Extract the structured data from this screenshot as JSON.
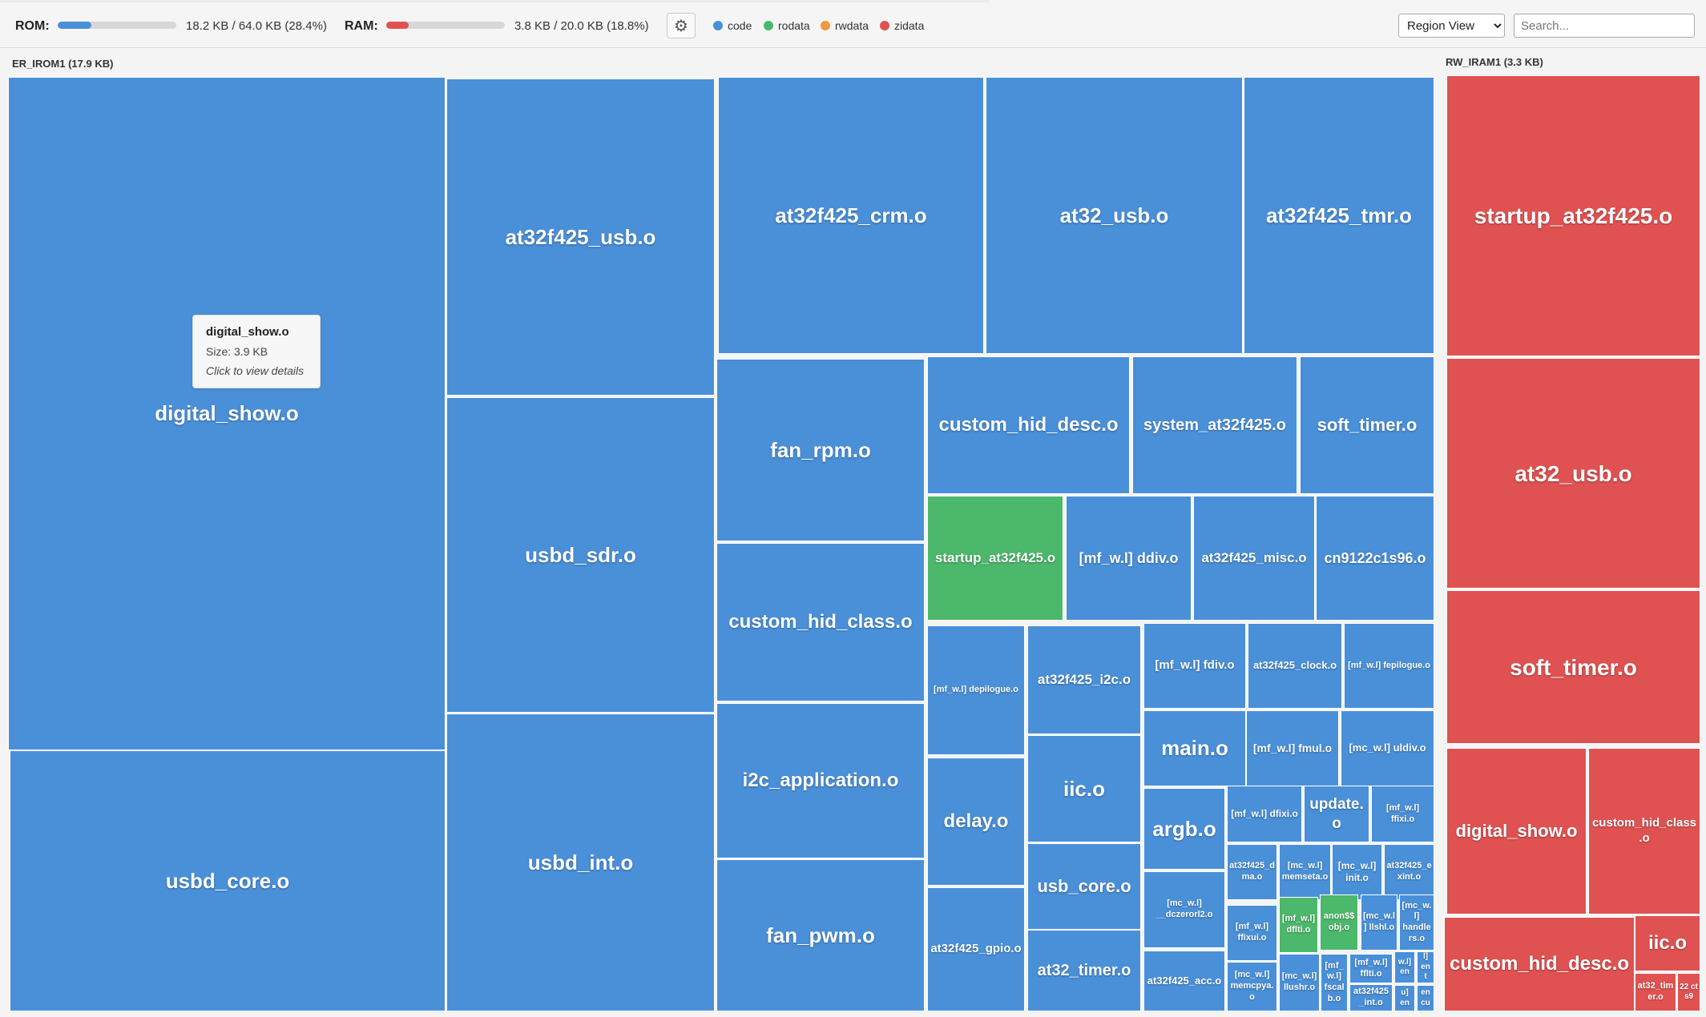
{
  "toolbar": {
    "rom_label": "ROM:",
    "rom_text": "18.2 KB / 64.0 KB (28.4%)",
    "rom_fraction": 0.284,
    "ram_label": "RAM:",
    "ram_text": "3.8 KB / 20.0 KB (18.8%)",
    "ram_fraction": 0.188,
    "settings_icon": "gear-icon",
    "legend": [
      {
        "label": "code",
        "color": "#4a90d9"
      },
      {
        "label": "rodata",
        "color": "#4cb86b"
      },
      {
        "label": "rwdata",
        "color": "#f09a3e"
      },
      {
        "label": "zidata",
        "color": "#e05252"
      }
    ],
    "view_select": {
      "value": "Region View"
    },
    "search": {
      "placeholder": "Search..."
    }
  },
  "regions": {
    "rom": {
      "label": "ER_IROM1 (17.9 KB)"
    },
    "ram": {
      "label": "RW_IRAM1 (3.3 KB)"
    }
  },
  "tooltip": {
    "title": "digital_show.o",
    "size": "Size: 3.9 KB",
    "hint": "Click to view details"
  },
  "tiles": [
    "digital_show.o",
    "usbd_core.o",
    "at32f425_usb.o",
    "usbd_sdr.o",
    "usbd_int.o",
    "at32f425_crm.o",
    "at32_usb.o",
    "at32f425_tmr.o",
    "fan_rpm.o",
    "custom_hid_class.o",
    "i2c_application.o",
    "fan_pwm.o",
    "custom_hid_desc.o",
    "system_at32f425.o",
    "soft_timer.o",
    "startup_at32f425.o",
    "[mf_w.l] ddiv.o",
    "at32f425_misc.o",
    "cn9122c1s96.o",
    "[mf_w.l] depilogue.o",
    "at32f425_i2c.o",
    "[mf_w.l] fdiv.o",
    "at32f425_clock.o",
    "[mf_w.l] fepilogue.o",
    "delay.o",
    "iic.o",
    "main.o",
    "[mf_w.l] fmul.o",
    "[mc_w.l] uldiv.o",
    "at32f425_gpio.o",
    "usb_core.o",
    "at32_timer.o",
    "argb.o",
    "[mf_w.l] dfixi.o",
    "update.o",
    "[mf_w.l] ffixi.o",
    "at32f425_dma.o",
    "[mc_w.l] memseta.o",
    "[mc_w.l] init.o",
    "at32f425_exint.o",
    "[mc_w.l] __dczerorl2.o",
    "[mf_w.l] ffixui.o",
    "[mf_w.l] dflti.o",
    "anon$$obj.o",
    "[mc_w.l] llshl.o",
    "[mc_w.l] handlers.o",
    "at32f425_acc.o",
    "[mc_w.l] memcpya.o",
    "[mc_w.l] llushr.o",
    "[mf_w.l] fscalb.o",
    "[mf_w.l] fflti.o",
    "at32f425_int.o",
    "w.l] en",
    "l] en t",
    "u] en",
    "en cu",
    "startup_at32f425.o",
    "at32_usb.o",
    "soft_timer.o",
    "digital_show.o",
    "custom_hid_class.o",
    "custom_hid_desc.o",
    "iic.o",
    "at32_timer.o",
    "22 ct s9"
  ]
}
